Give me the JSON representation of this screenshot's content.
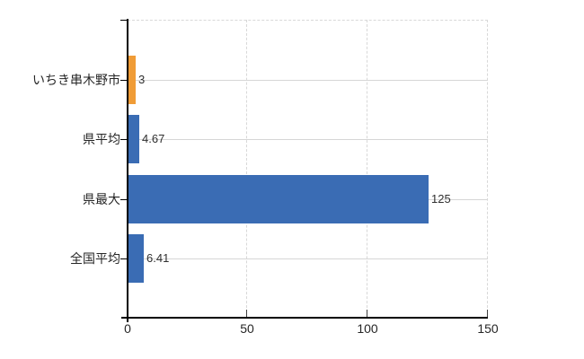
{
  "chart_data": {
    "type": "bar",
    "orientation": "horizontal",
    "title": "",
    "xlabel": "",
    "ylabel": "",
    "categories": [
      "いちき串木野市",
      "県平均",
      "県最大",
      "全国平均"
    ],
    "values": [
      3,
      4.67,
      125,
      6.41
    ],
    "value_labels": [
      "3",
      "4.67",
      "125",
      "6.41"
    ],
    "bar_colors": [
      "#F09C36",
      "#3A6CB4",
      "#3A6CB4",
      "#3A6CB4"
    ],
    "x_axis": {
      "range": [
        0,
        150
      ],
      "tick_labels": [
        "0",
        "50",
        "100",
        "150"
      ]
    },
    "grid": {
      "vertical_style": "dashed",
      "horizontal_style": "solid",
      "grid_color": "#d6d6d6"
    },
    "colors": {
      "highlight": "#F09C36",
      "default": "#3A6CB4",
      "axis": "#000000"
    },
    "legend": {
      "visible": false
    }
  }
}
